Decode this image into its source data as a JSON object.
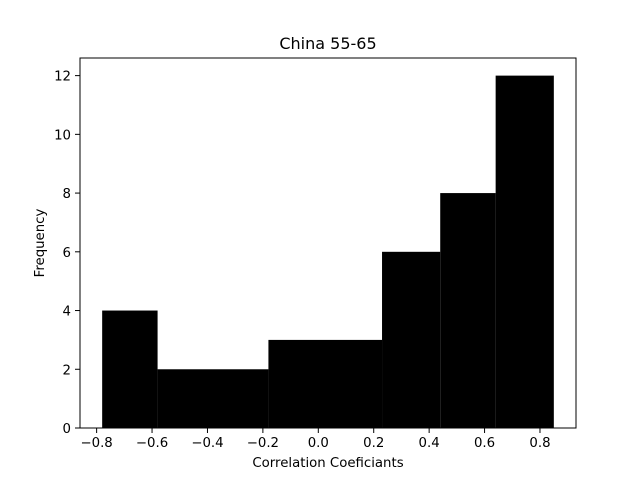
{
  "chart_data": {
    "type": "bar",
    "title": "China 55-65",
    "xlabel": "Correlation Coeficiants",
    "ylabel": "Frequency",
    "bins": [
      {
        "x0": -0.78,
        "x1": -0.58,
        "count": 4
      },
      {
        "x0": -0.58,
        "x1": -0.18,
        "count": 2
      },
      {
        "x0": -0.18,
        "x1": 0.23,
        "count": 3
      },
      {
        "x0": 0.23,
        "x1": 0.44,
        "count": 6
      },
      {
        "x0": 0.44,
        "x1": 0.64,
        "count": 8
      },
      {
        "x0": 0.64,
        "x1": 0.85,
        "count": 12
      }
    ],
    "xlim": [
      -0.86,
      0.93
    ],
    "ylim": [
      0,
      12.6
    ],
    "x_ticks": [
      "−0.8",
      "−0.6",
      "−0.4",
      "−0.2",
      "0.0",
      "0.2",
      "0.4",
      "0.6",
      "0.8"
    ],
    "x_tick_values": [
      -0.8,
      -0.6,
      -0.4,
      -0.2,
      0.0,
      0.2,
      0.4,
      0.6,
      0.8
    ],
    "y_ticks": [
      "0",
      "2",
      "4",
      "6",
      "8",
      "10",
      "12"
    ],
    "y_tick_values": [
      0,
      2,
      4,
      6,
      8,
      10,
      12
    ],
    "bar_color": "#000000",
    "grid": false,
    "legend": "none"
  }
}
